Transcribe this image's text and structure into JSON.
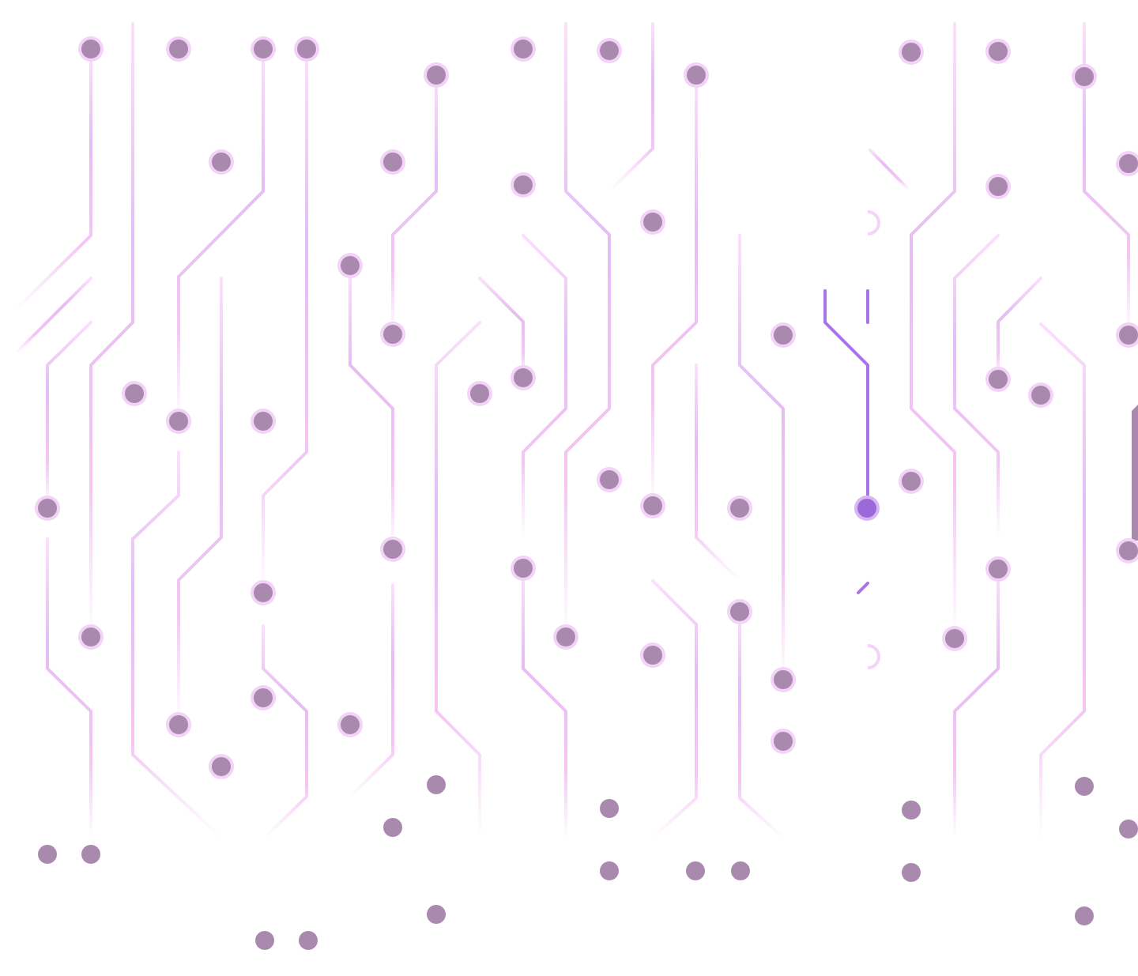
{
  "scene": {
    "description_visible_text": "",
    "colors": {
      "background": "#ffffff",
      "trace_light": "#f5c6f5",
      "trace_mid": "#e2b6f0",
      "trace_active": "#a874e8",
      "node_fill": "#a98aae",
      "node_halo": "#f3d3f7",
      "node_active": "#9b6ad8"
    },
    "icons": [
      "circuit-node",
      "circuit-trace"
    ]
  }
}
